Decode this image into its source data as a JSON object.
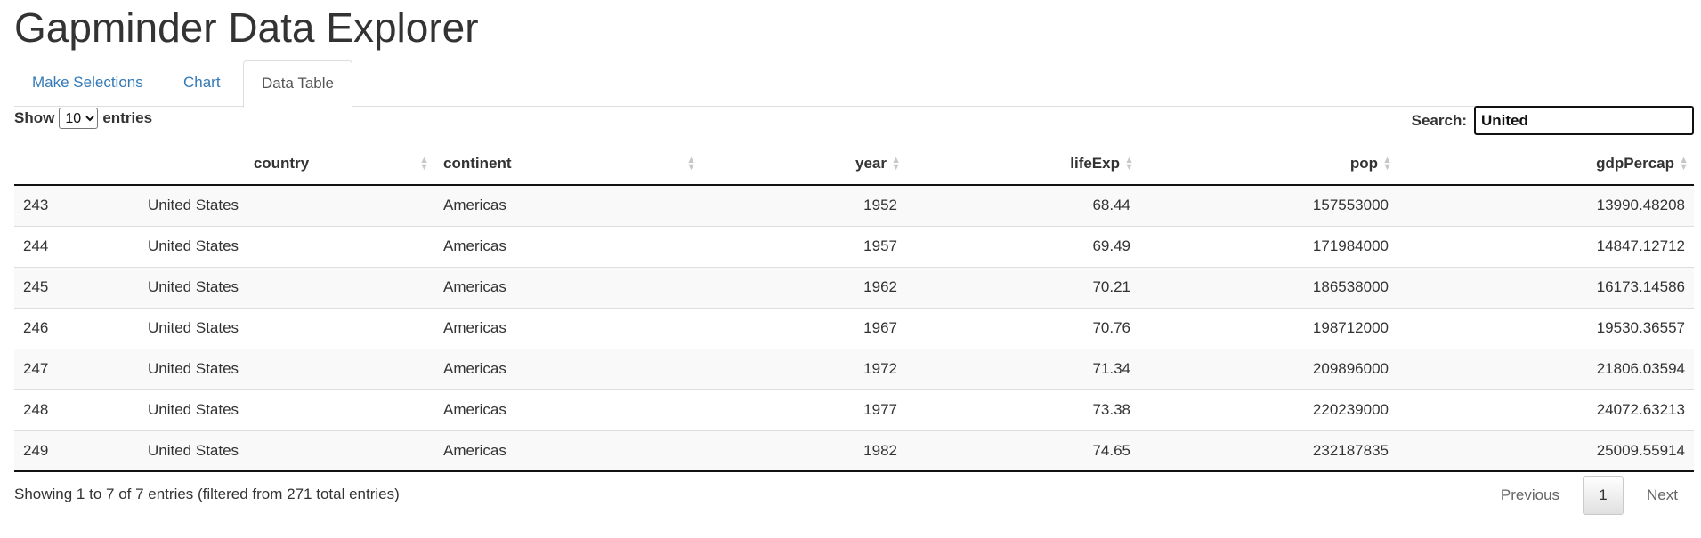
{
  "app": {
    "title": "Gapminder Data Explorer"
  },
  "tabs": [
    {
      "label": "Make Selections"
    },
    {
      "label": "Chart"
    },
    {
      "label": "Data Table"
    }
  ],
  "active_tab": "Data Table",
  "length_control": {
    "prefix": "Show",
    "value": "10",
    "suffix": "entries"
  },
  "search": {
    "label": "Search:",
    "value": "United"
  },
  "table": {
    "columns": [
      {
        "label": ""
      },
      {
        "label": "country"
      },
      {
        "label": "continent"
      },
      {
        "label": "year"
      },
      {
        "label": "lifeExp"
      },
      {
        "label": "pop"
      },
      {
        "label": "gdpPercap"
      }
    ],
    "rows": [
      [
        "243",
        "United States",
        "Americas",
        "1952",
        "68.44",
        "157553000",
        "13990.48208"
      ],
      [
        "244",
        "United States",
        "Americas",
        "1957",
        "69.49",
        "171984000",
        "14847.12712"
      ],
      [
        "245",
        "United States",
        "Americas",
        "1962",
        "70.21",
        "186538000",
        "16173.14586"
      ],
      [
        "246",
        "United States",
        "Americas",
        "1967",
        "70.76",
        "198712000",
        "19530.36557"
      ],
      [
        "247",
        "United States",
        "Americas",
        "1972",
        "71.34",
        "209896000",
        "21806.03594"
      ],
      [
        "248",
        "United States",
        "Americas",
        "1977",
        "73.38",
        "220239000",
        "24072.63213"
      ],
      [
        "249",
        "United States",
        "Americas",
        "1982",
        "74.65",
        "232187835",
        "25009.55914"
      ]
    ]
  },
  "info": {
    "text": "Showing 1 to 7 of 7 entries (filtered from 271 total entries)"
  },
  "pagination": {
    "previous": "Previous",
    "page": "1",
    "next": "Next"
  }
}
